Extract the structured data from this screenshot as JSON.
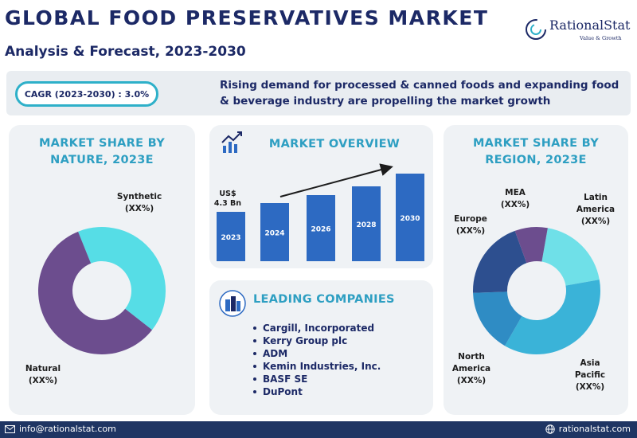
{
  "header": {
    "title": "GLOBAL FOOD PRESERVATIVES MARKET",
    "subtitle": "Analysis & Forecast, 2023-2030"
  },
  "logo": {
    "name": "RationalStat",
    "tagline": "Value & Growth"
  },
  "banner": {
    "cagr": "CAGR (2023-2030) : 3.0%",
    "text": "Rising demand for processed & canned foods and expanding food & beverage industry are propelling the market growth"
  },
  "nature_card": {
    "title": "MARKET SHARE BY NATURE, 2023E",
    "title_line1": "MARKET SHARE BY",
    "title_line2": "NATURE, 2023E",
    "segments": [
      {
        "line1": "Synthetic",
        "line2": "(XX%)",
        "color": "#56dde6"
      },
      {
        "line1": "Natural",
        "line2": "(XX%)",
        "color": "#6c4d8e"
      }
    ]
  },
  "overview_card": {
    "title": "MARKET OVERVIEW",
    "value_line1": "US$",
    "value_line2": "4.3 Bn",
    "bars": [
      {
        "year": "2023"
      },
      {
        "year": "2024"
      },
      {
        "year": "2026"
      },
      {
        "year": "2028"
      },
      {
        "year": "2030"
      }
    ],
    "bar_color": "#2d6ac2"
  },
  "companies_card": {
    "title": "LEADING COMPANIES",
    "items": [
      "Cargill, Incorporated",
      "Kerry Group plc",
      "ADM",
      "Kemin Industries, Inc.",
      "BASF SE",
      "DuPont"
    ]
  },
  "region_card": {
    "title_line1": "MARKET SHARE BY",
    "title_line2": "REGION, 2023E",
    "segments": [
      {
        "name": "Latin America",
        "line1": "Latin",
        "line2": "America",
        "line3": "(XX%)",
        "color": "#6fe0e8"
      },
      {
        "name": "Asia Pacific",
        "line1": "Asia",
        "line2": "Pacific",
        "line3": "(XX%)",
        "color": "#3ab3d8"
      },
      {
        "name": "North America",
        "line1": "North",
        "line2": "America",
        "line3": "(XX%)",
        "color": "#2f8cc4"
      },
      {
        "name": "Europe",
        "line1": "Europe",
        "line2": "(XX%)",
        "color": "#2d4f8f"
      },
      {
        "name": "MEA",
        "line1": "MEA",
        "line2": "(XX%)",
        "color": "#6c4d8e"
      }
    ]
  },
  "footer": {
    "email": "info@rationalstat.com",
    "website": "rationalstat.com"
  }
}
